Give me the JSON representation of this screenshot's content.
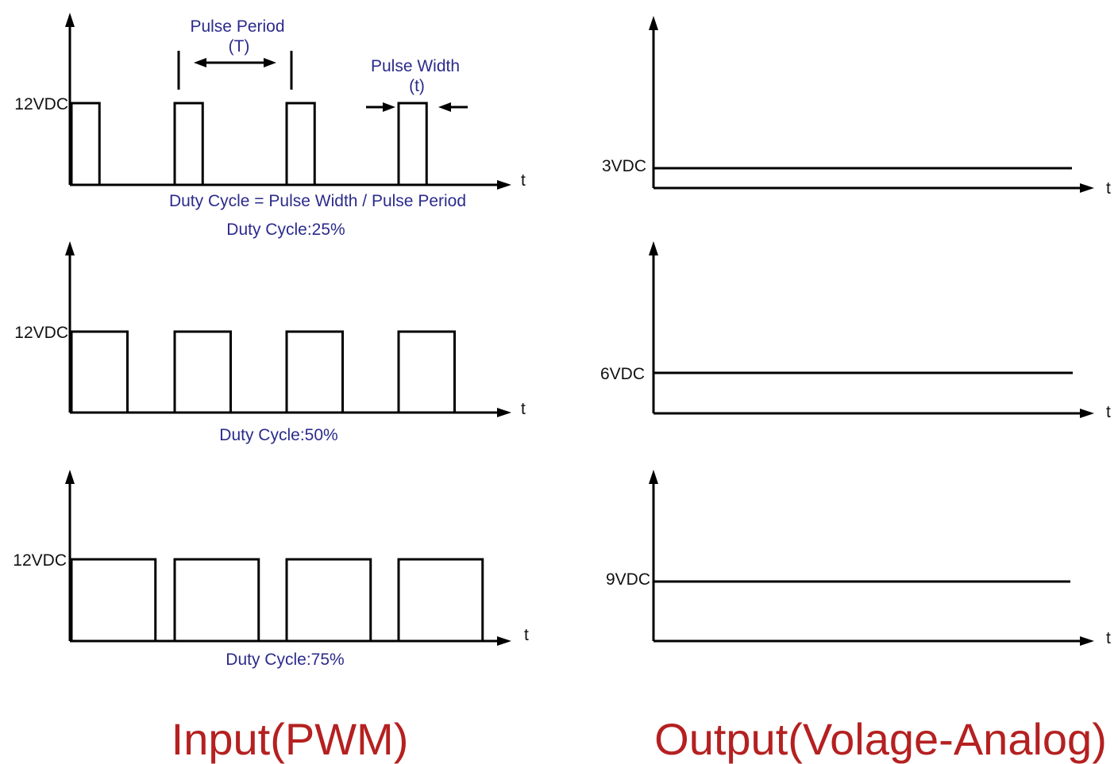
{
  "colors": {
    "annotation": "#2b2b8c",
    "title": "#b52020",
    "line": "#000000"
  },
  "input_panel": {
    "title": "Input(PWM)",
    "voltage_label": "12VDC",
    "time_label": "t",
    "pulse_period_label": "Pulse Period",
    "pulse_period_symbol": "(T)",
    "pulse_width_label": "Pulse Width",
    "pulse_width_symbol": "(t)",
    "formula": "Duty Cycle = Pulse Width / Pulse Period",
    "waves": [
      {
        "caption": "Duty Cycle:25%",
        "duty": 0.25,
        "pulses": 4
      },
      {
        "caption": "Duty Cycle:50%",
        "duty": 0.5,
        "pulses": 4
      },
      {
        "caption": "Duty Cycle:75%",
        "duty": 0.75,
        "pulses": 4
      }
    ]
  },
  "output_panel": {
    "title": "Output(Volage-Analog)",
    "time_label": "t",
    "levels": [
      {
        "label": "3VDC",
        "volts": 3
      },
      {
        "label": "6VDC",
        "volts": 6
      },
      {
        "label": "9VDC",
        "volts": 9
      }
    ]
  }
}
